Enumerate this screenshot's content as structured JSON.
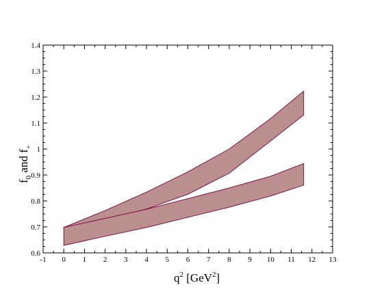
{
  "chart_data": {
    "type": "area",
    "xlabel": {
      "base": "q",
      "sup": "2",
      "rest": " [GeV",
      "unit_sup": "2",
      "close": "]"
    },
    "ylabel": {
      "a": "f",
      "a_sub": "0",
      "mid": " and f",
      "b_sub": "+"
    },
    "xlim": [
      -1,
      13
    ],
    "ylim": [
      0.6,
      1.4
    ],
    "x_ticks": [
      -1,
      0,
      1,
      2,
      3,
      4,
      5,
      6,
      7,
      8,
      9,
      10,
      11,
      12,
      13
    ],
    "y_ticks": [
      0.6,
      0.7,
      0.8,
      0.9,
      1.0,
      1.1,
      1.2,
      1.3,
      1.4
    ],
    "x_tick_labels": [
      "-1",
      "0",
      "1",
      "2",
      "3",
      "4",
      "5",
      "6",
      "7",
      "8",
      "9",
      "10",
      "11",
      "12",
      "13"
    ],
    "y_tick_labels": [
      "0.6",
      "0.7",
      "0.8",
      "0.9",
      "1",
      "1.1",
      "1.2",
      "1.3",
      "1.4"
    ],
    "fill_color": "#bc8f8f",
    "line_color": "#7b1048",
    "series": [
      {
        "x": [
          0,
          2,
          4,
          6,
          8,
          10,
          11.6
        ],
        "lower": [
          0.696,
          0.729,
          0.769,
          0.826,
          0.907,
          1.031,
          1.131
        ],
        "upper": [
          0.698,
          0.763,
          0.834,
          0.912,
          1.0,
          1.117,
          1.223
        ]
      },
      {
        "x": [
          0,
          2,
          4,
          6,
          8,
          10,
          11.6
        ],
        "lower": [
          0.629,
          0.664,
          0.698,
          0.737,
          0.776,
          0.819,
          0.861
        ],
        "upper": [
          0.698,
          0.733,
          0.768,
          0.809,
          0.85,
          0.895,
          0.944
        ]
      }
    ]
  }
}
